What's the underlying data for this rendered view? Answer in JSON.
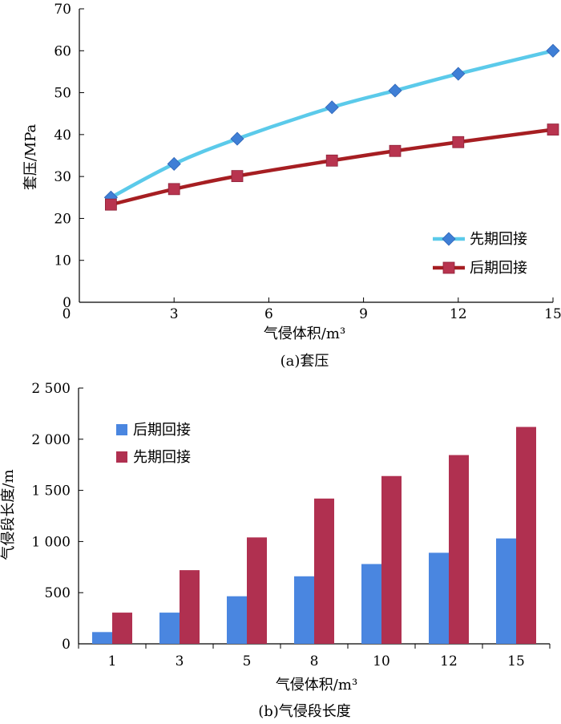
{
  "chart_data": [
    {
      "type": "line",
      "caption": "(a)套压",
      "xlabel": "气侵体积/m³",
      "ylabel": "套压/MPa",
      "xlim": [
        0,
        15
      ],
      "ylim": [
        0,
        70
      ],
      "xticks": [
        0,
        3,
        6,
        9,
        12,
        15
      ],
      "yticks": [
        0,
        10,
        20,
        30,
        40,
        50,
        60,
        70
      ],
      "legend_position": "bottom-right",
      "grid": false,
      "series": [
        {
          "name": "先期回接",
          "color": "#5bcaea",
          "marker_color": "#3f7fd6",
          "marker": "diamond",
          "x": [
            1,
            3,
            5,
            8,
            10,
            12,
            15
          ],
          "y": [
            25,
            33,
            39,
            46.5,
            50.5,
            54.5,
            60
          ]
        },
        {
          "name": "后期回接",
          "color": "#a61e22",
          "marker_color": "#b8344f",
          "marker": "square",
          "x": [
            1,
            3,
            5,
            8,
            10,
            12,
            15
          ],
          "y": [
            23.3,
            27,
            30.1,
            33.8,
            36.1,
            38.2,
            41.2
          ]
        }
      ]
    },
    {
      "type": "bar",
      "caption": "(b)气侵段长度",
      "xlabel": "气侵体积/m³",
      "ylabel": "气侵段长度/m",
      "categories": [
        "1",
        "3",
        "5",
        "8",
        "10",
        "12",
        "15"
      ],
      "ylim": [
        0,
        2500
      ],
      "yticks": [
        0,
        500,
        1000,
        1500,
        2000,
        2500
      ],
      "ytick_labels": [
        "0",
        "500",
        "1 000",
        "1 500",
        "2 000",
        "2 500"
      ],
      "legend_position": "top-left",
      "grid": false,
      "series": [
        {
          "name": "后期回接",
          "color": "#4a86e0",
          "values": [
            115,
            305,
            465,
            660,
            780,
            890,
            1030
          ]
        },
        {
          "name": "先期回接",
          "color": "#b03050",
          "values": [
            305,
            720,
            1040,
            1420,
            1640,
            1845,
            2120
          ]
        }
      ]
    }
  ]
}
